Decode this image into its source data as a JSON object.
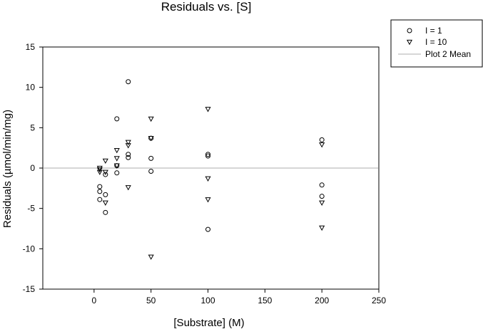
{
  "chart_data": {
    "type": "scatter",
    "title": "Residuals vs. [S]",
    "xlabel": "[Substrate] (M)",
    "ylabel": "Residuals (µmol/min/mg)",
    "xlim": [
      -45,
      250
    ],
    "ylim": [
      -15,
      15
    ],
    "x_ticks": [
      0,
      50,
      100,
      150,
      200,
      250
    ],
    "y_ticks": [
      -15,
      -10,
      -5,
      0,
      5,
      10,
      15
    ],
    "grid": false,
    "legend_position": "top-right, outside plot",
    "series": [
      {
        "name": "I = 1",
        "marker": "circle",
        "points": [
          [
            5,
            -2.3
          ],
          [
            5,
            -2.9
          ],
          [
            5,
            -3.9
          ],
          [
            10,
            -0.8
          ],
          [
            10,
            -3.3
          ],
          [
            10,
            -5.5
          ],
          [
            20,
            6.1
          ],
          [
            20,
            0.3
          ],
          [
            20,
            -0.6
          ],
          [
            30,
            10.7
          ],
          [
            30,
            1.7
          ],
          [
            30,
            1.3
          ],
          [
            50,
            3.7
          ],
          [
            50,
            1.2
          ],
          [
            50,
            -0.4
          ],
          [
            100,
            1.7
          ],
          [
            100,
            1.5
          ],
          [
            100,
            -7.6
          ],
          [
            200,
            3.5
          ],
          [
            200,
            -2.1
          ],
          [
            200,
            -3.5
          ]
        ]
      },
      {
        "name": "I = 10",
        "marker": "triangle-down",
        "points": [
          [
            5,
            0.0
          ],
          [
            5,
            -0.2
          ],
          [
            5,
            -0.5
          ],
          [
            10,
            0.9
          ],
          [
            10,
            -0.5
          ],
          [
            10,
            -4.3
          ],
          [
            20,
            2.2
          ],
          [
            20,
            1.2
          ],
          [
            20,
            0.3
          ],
          [
            30,
            3.2
          ],
          [
            30,
            2.8
          ],
          [
            30,
            -2.4
          ],
          [
            50,
            6.1
          ],
          [
            50,
            3.7
          ],
          [
            50,
            -11.0
          ],
          [
            100,
            7.3
          ],
          [
            100,
            -1.3
          ],
          [
            100,
            -3.9
          ],
          [
            200,
            2.9
          ],
          [
            200,
            -4.3
          ],
          [
            200,
            -7.4
          ]
        ]
      }
    ],
    "reference_line": {
      "name": "Plot 2 Mean",
      "y": 0,
      "color": "#c8c8c8"
    }
  }
}
